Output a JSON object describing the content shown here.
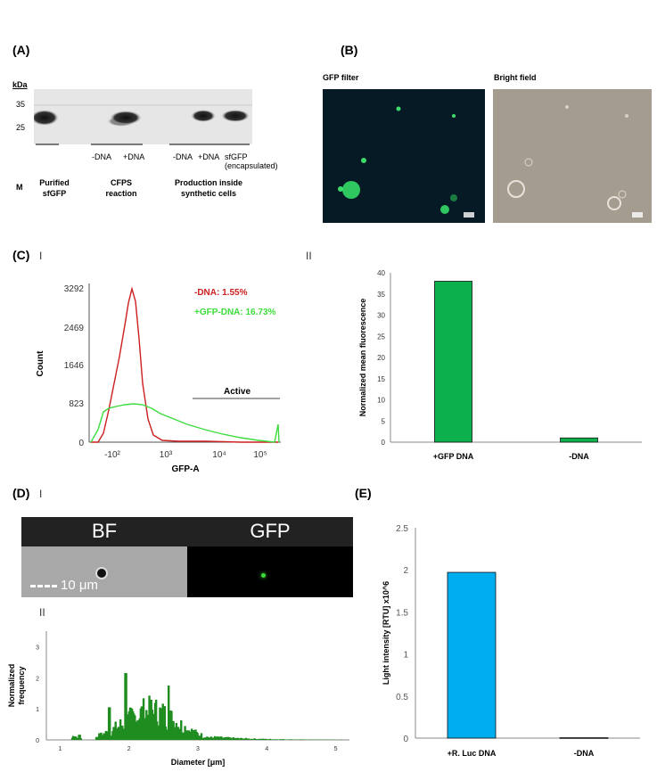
{
  "panels": {
    "A": "(A)",
    "B": "(B)",
    "C": "(C)",
    "D": "(D)",
    "E": "(E)",
    "C_i": "I",
    "C_ii": "II",
    "D_i": "I",
    "D_ii": "II"
  },
  "blot": {
    "kda": "kDa",
    "marker_35": "35",
    "marker_25": "25",
    "lane_labels": [
      "-DNA",
      "+DNA",
      "-DNA",
      "+DNA",
      "sfGFP\n(encapsulated)"
    ],
    "m_label": "M",
    "group_labels": [
      "Purified\nsfGFP",
      "CFPS\nreaction",
      "Production inside\nsynthetic cells"
    ]
  },
  "microscopy": {
    "gfp_title": "GFP  filter",
    "bf_title": "Bright field",
    "colors": {
      "gfp_bg": "#061a26",
      "gfp_dot": "#35d86a",
      "bf_bg": "#a59c90"
    }
  },
  "flow": {
    "xlabel": "GFP-A",
    "ylabel": "Count",
    "y_ticks": [
      "3292",
      "2469",
      "1646",
      "823",
      "0"
    ],
    "x_ticks": [
      "-10²",
      "10³",
      "10⁴",
      "10⁵"
    ],
    "legend_neg": "-DNA: 1.55%",
    "legend_pos": "+GFP-DNA: 16.73%",
    "active": "Active",
    "colors": {
      "neg": "#cc1f1f",
      "pos": "#3ddc3d"
    }
  },
  "size_strip": {
    "bf": "BF",
    "gfp": "GFP",
    "scale": "10 μm"
  },
  "chart_data": [
    {
      "type": "bar",
      "panel": "C-II",
      "categories": [
        "+GFP DNA",
        "-DNA"
      ],
      "values": [
        38,
        1
      ],
      "ylabel": "Normalized mean fluorescence",
      "ylim": [
        0,
        40
      ],
      "y_ticks": [
        0,
        5,
        10,
        15,
        20,
        25,
        30,
        35,
        40
      ],
      "color": "#0db14b"
    },
    {
      "type": "bar",
      "panel": "D-II",
      "xlabel": "Diameter [μm]",
      "ylabel": "Normalized\nfrequency",
      "xlim": [
        0.8,
        5.2
      ],
      "ylim": [
        0,
        3.5
      ],
      "x_ticks": [
        1,
        2,
        3,
        4,
        5
      ],
      "y_ticks": [
        0,
        1,
        2,
        3
      ],
      "color": "#1e8c1e"
    },
    {
      "type": "bar",
      "panel": "E",
      "categories": [
        "+R. Luc DNA",
        "-DNA"
      ],
      "values": [
        1.97,
        0.005
      ],
      "ylabel": "Light intensity [RTU] x10^6",
      "ylim": [
        0,
        2.5
      ],
      "y_ticks": [
        "0",
        "0.5",
        "1",
        "1.5",
        "2",
        "2.5"
      ],
      "color": "#00aeef"
    }
  ]
}
